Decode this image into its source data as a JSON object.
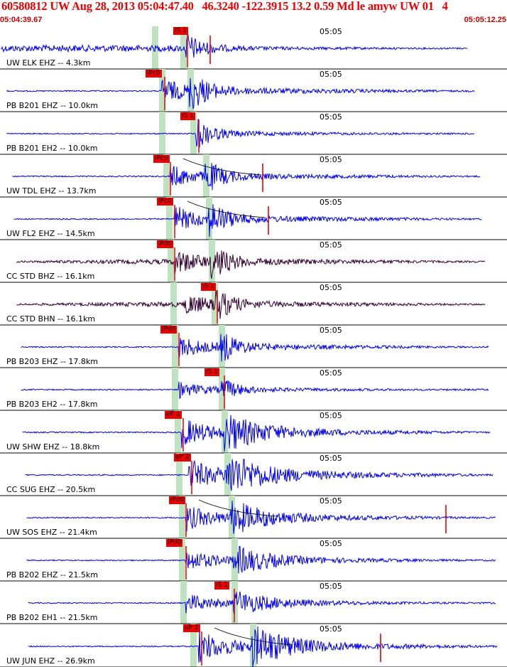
{
  "header": {
    "title": "60580812 UW Aug 28, 2013 05:04:47.40   46.3240 -122.3915 13.2 0.59 Md le amyw UW 01   4",
    "start_time": "05:04:39.67",
    "end_time": "05:05:12.25"
  },
  "colors": {
    "trace": "#0000ee",
    "trace_broadband": "#330033",
    "pick": "#ee0000",
    "window": "#bfe3bf",
    "title": "#ee0000"
  },
  "minute_marker": "05:05",
  "traces": [
    {
      "label": "UW ELK EHZ -- 4.3km",
      "pick": "iS 1"
    },
    {
      "label": "PB B201 EHZ -- 10.0km",
      "pick": "iPc0"
    },
    {
      "label": "PB B201 EH2 -- 10.0km",
      "pick": "iS 1"
    },
    {
      "label": "UW TDL EHZ -- 13.7km",
      "pick": "iPc0"
    },
    {
      "label": "UW FL2 EHZ -- 14.5km",
      "pick": "iPc0"
    },
    {
      "label": "CC STD BHZ -- 16.1km",
      "pick": "iPd0"
    },
    {
      "label": "CC STD BHN -- 16.1km",
      "pick": "iS 1"
    },
    {
      "label": "PB B203 EHZ -- 17.8km",
      "pick": "iPd0"
    },
    {
      "label": "PB B203 EH2 -- 17.8km",
      "pick": "iS 1"
    },
    {
      "label": "UW SHW EHZ -- 18.8km",
      "pick": "eP 2"
    },
    {
      "label": "CC SUG EHZ -- 20.5km",
      "pick": "eP 2"
    },
    {
      "label": "UW SOS EHZ -- 21.4km",
      "pick": "iPd0"
    },
    {
      "label": "PB B202 EHZ -- 21.5km",
      "pick": "iPd0"
    },
    {
      "label": "PB B202 EH1 -- 21.5km",
      "pick": "iS 1"
    },
    {
      "label": "UW JUN EHZ -- 26.9km",
      "pick": "eP 2"
    }
  ]
}
